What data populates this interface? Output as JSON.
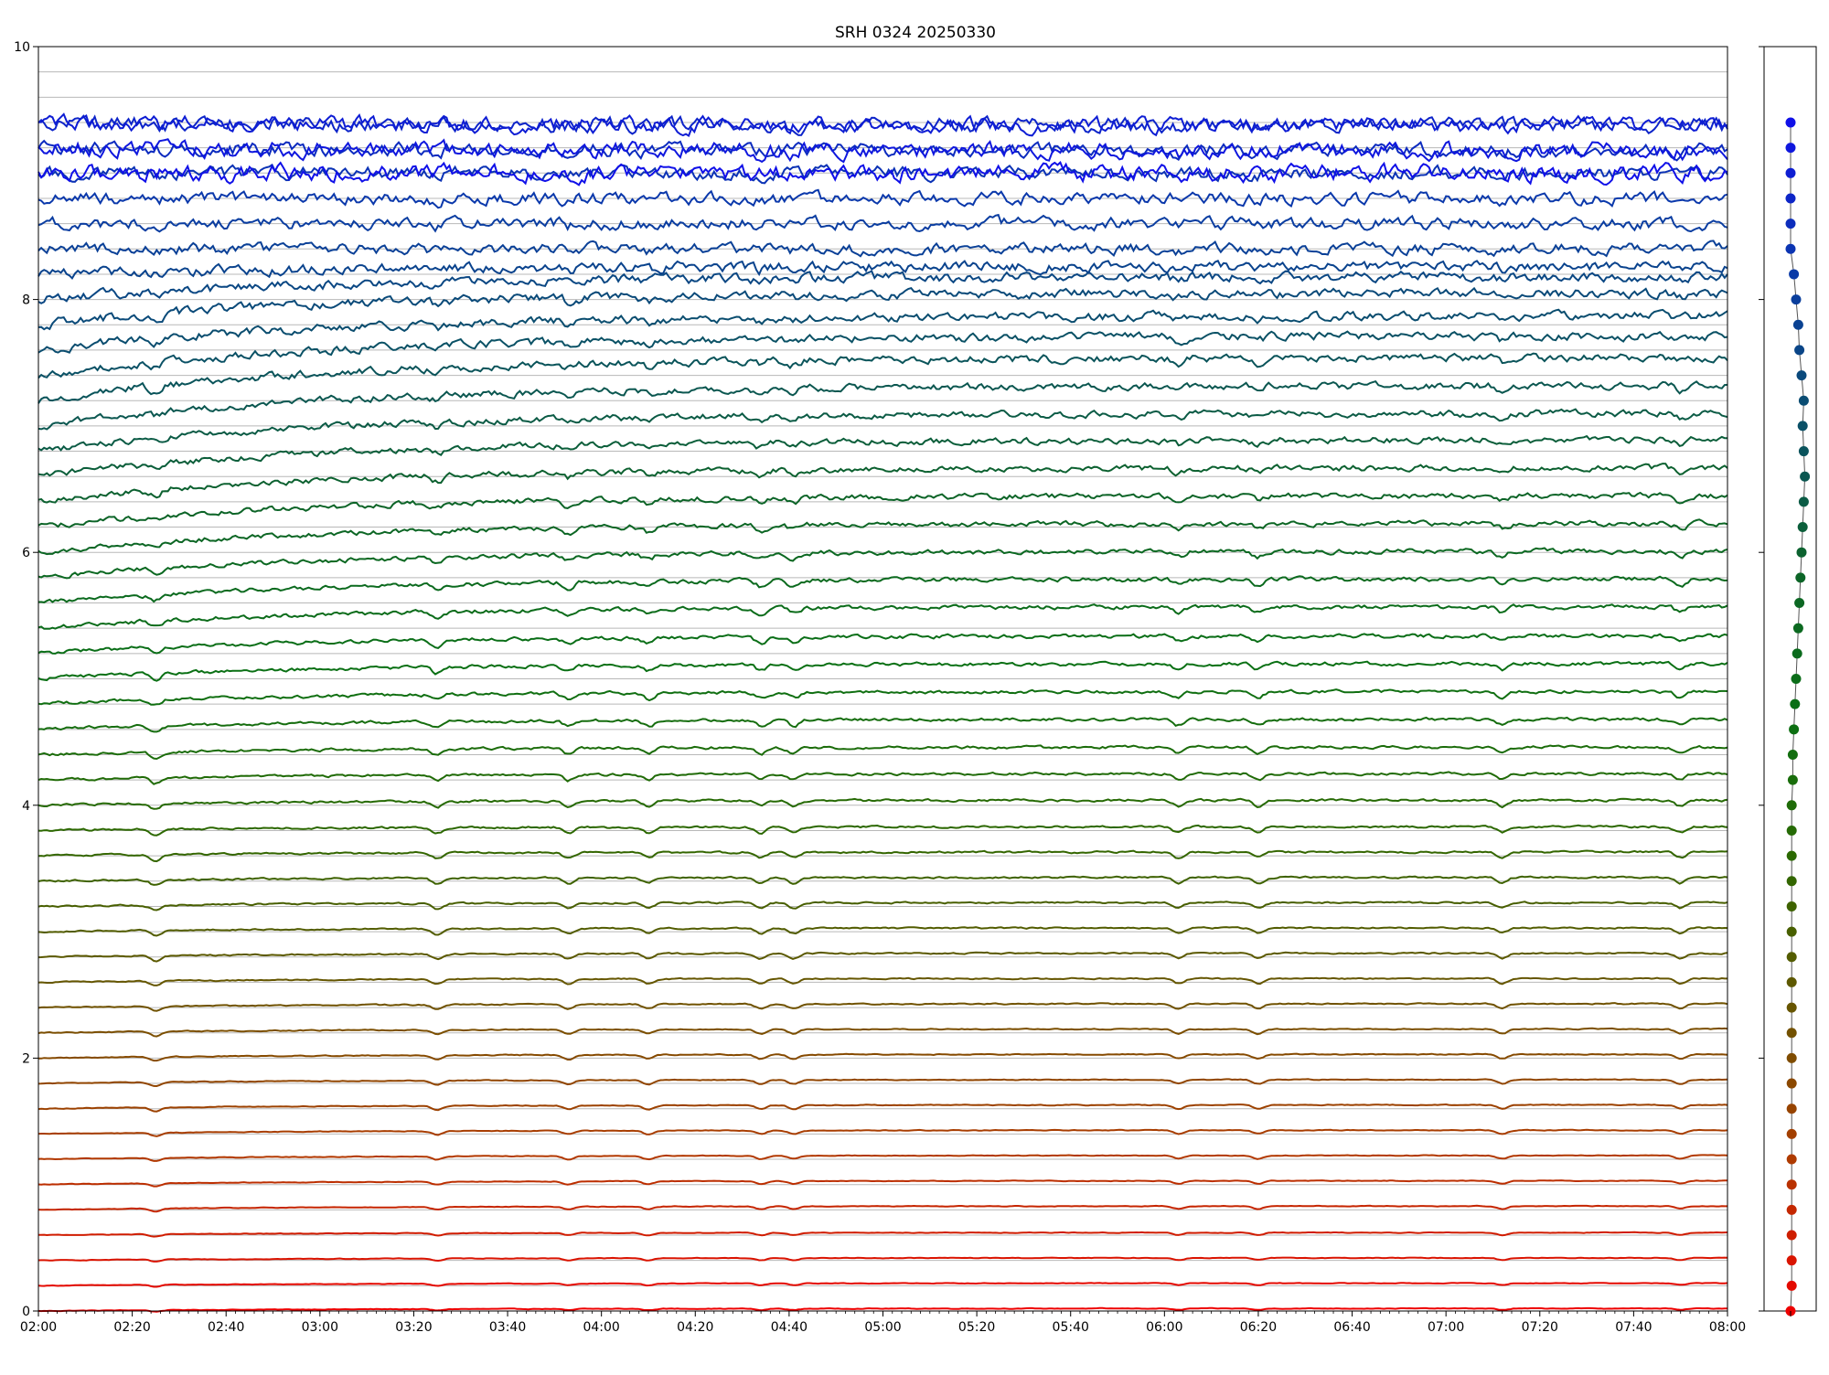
{
  "chart_data": {
    "type": "line",
    "title": "SRH 0324 20250330",
    "xlabel": "",
    "ylabel": "",
    "x_tick_labels": [
      "02:00",
      "02:20",
      "02:40",
      "03:00",
      "03:20",
      "03:40",
      "04:00",
      "04:20",
      "04:40",
      "05:00",
      "05:20",
      "05:40",
      "06:00",
      "06:20",
      "06:40",
      "07:00",
      "07:20",
      "07:40",
      "08:00"
    ],
    "x_range": [
      "02:00",
      "08:00"
    ],
    "y_tick_labels": [
      "0",
      "2",
      "4",
      "6",
      "8",
      "10"
    ],
    "ylim": [
      0,
      10
    ],
    "grid": "horizontal reference line at each trace baseline",
    "color_gradient": [
      "#ee0000",
      "#b03a00",
      "#6a5400",
      "#2d6800",
      "#0a7014",
      "#0c6428",
      "#0a4f6a",
      "#0a3aa8",
      "#1010e8"
    ],
    "series_count": 51,
    "series_spacing": 0.2,
    "baselines_start_end": [
      [
        0.0,
        0.02
      ],
      [
        0.2,
        0.22
      ],
      [
        0.4,
        0.42
      ],
      [
        0.6,
        0.62
      ],
      [
        0.8,
        0.83
      ],
      [
        1.0,
        1.03
      ],
      [
        1.2,
        1.23
      ],
      [
        1.4,
        1.43
      ],
      [
        1.6,
        1.63
      ],
      [
        1.8,
        1.83
      ],
      [
        2.0,
        2.03
      ],
      [
        2.2,
        2.23
      ],
      [
        2.4,
        2.43
      ],
      [
        2.6,
        2.63
      ],
      [
        2.8,
        2.83
      ],
      [
        3.0,
        3.03
      ],
      [
        3.2,
        3.23
      ],
      [
        3.4,
        3.43
      ],
      [
        3.6,
        3.63
      ],
      [
        3.8,
        3.83
      ],
      [
        4.0,
        4.04
      ],
      [
        4.2,
        4.25
      ],
      [
        4.4,
        4.46
      ],
      [
        4.6,
        4.68
      ],
      [
        4.8,
        4.9
      ],
      [
        5.0,
        5.12
      ],
      [
        5.2,
        5.34
      ],
      [
        5.4,
        5.57
      ],
      [
        5.6,
        5.79
      ],
      [
        5.8,
        6.01
      ],
      [
        6.0,
        6.23
      ],
      [
        6.2,
        6.45
      ],
      [
        6.4,
        6.67
      ],
      [
        6.6,
        6.89
      ],
      [
        6.8,
        7.1
      ],
      [
        7.0,
        7.32
      ],
      [
        7.2,
        7.54
      ],
      [
        7.4,
        7.71
      ],
      [
        7.6,
        7.87
      ],
      [
        7.8,
        8.05
      ],
      [
        8.0,
        8.18
      ],
      [
        8.2,
        8.26
      ],
      [
        8.4,
        8.4
      ],
      [
        8.6,
        8.6
      ],
      [
        8.8,
        8.8
      ],
      [
        9.0,
        9.0
      ],
      [
        9.2,
        9.18
      ],
      [
        9.4,
        9.38
      ],
      [
        9.4,
        9.38
      ],
      [
        9.2,
        9.18
      ],
      [
        9.0,
        9.0
      ]
    ],
    "dip_events": [
      "02:25",
      "03:25",
      "03:53",
      "04:10",
      "04:34",
      "04:41",
      "06:03",
      "06:20",
      "07:12",
      "07:50"
    ],
    "side_panel": {
      "type": "scatter",
      "ylim": [
        0,
        10
      ],
      "points_y": [
        0.0,
        0.2,
        0.4,
        0.6,
        0.8,
        1.0,
        1.2,
        1.4,
        1.6,
        1.8,
        2.0,
        2.2,
        2.4,
        2.6,
        2.8,
        3.0,
        3.2,
        3.4,
        3.6,
        3.8,
        4.0,
        4.2,
        4.4,
        4.6,
        4.8,
        5.0,
        5.2,
        5.4,
        5.6,
        5.8,
        6.0,
        6.2,
        6.4,
        6.6,
        6.8,
        7.0,
        7.2,
        7.4,
        7.6,
        7.8,
        8.0,
        8.2,
        8.4,
        8.6,
        8.8,
        9.0,
        9.2,
        9.4
      ],
      "points_offset": [
        0.0,
        0.05,
        0.05,
        0.05,
        0.05,
        0.05,
        0.05,
        0.05,
        0.05,
        0.05,
        0.05,
        0.05,
        0.05,
        0.05,
        0.05,
        0.05,
        0.05,
        0.05,
        0.05,
        0.05,
        0.05,
        0.1,
        0.1,
        0.15,
        0.2,
        0.25,
        0.3,
        0.35,
        0.4,
        0.45,
        0.5,
        0.55,
        0.6,
        0.65,
        0.6,
        0.55,
        0.6,
        0.5,
        0.4,
        0.35,
        0.25,
        0.15,
        0.0,
        0.0,
        0.0,
        0.0,
        0.0,
        0.0
      ]
    }
  }
}
